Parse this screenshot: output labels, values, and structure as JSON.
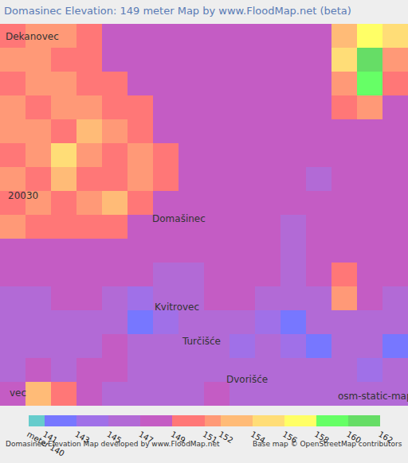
{
  "chart_data": {
    "type": "heatmap",
    "title": "Domasinec Elevation: 149 meter Map by www.FloodMap.net (beta)",
    "xlim": [
      -0.5,
      15.5
    ],
    "ylim": [
      15.5,
      -0.5
    ],
    "tick_labels": false,
    "z": [
      [
        150,
        151.5,
        151.5,
        150,
        148,
        148,
        148,
        148,
        148,
        148,
        148,
        148,
        148,
        153,
        157,
        155
      ],
      [
        151.5,
        151.5,
        150,
        150,
        148,
        148,
        148,
        148,
        148,
        148,
        148,
        148,
        148,
        155,
        161,
        151.5
      ],
      [
        150,
        151.5,
        151.5,
        150,
        150,
        148,
        148,
        148,
        148,
        148,
        148,
        148,
        148,
        151.5,
        159,
        150
      ],
      [
        151.5,
        150,
        151.5,
        151.5,
        150,
        150,
        148,
        148,
        148,
        148,
        148,
        148,
        148,
        150,
        151.5,
        148
      ],
      [
        151.5,
        151.5,
        150,
        153,
        151.5,
        150,
        148,
        148,
        148,
        148,
        148,
        148,
        148,
        148,
        148,
        148
      ],
      [
        150,
        151.5,
        155,
        151.5,
        150,
        151.5,
        150,
        148,
        148,
        148,
        148,
        148,
        148,
        148,
        148,
        148
      ],
      [
        151.5,
        150,
        153,
        150,
        150,
        151.5,
        150,
        148,
        148,
        148,
        148,
        148,
        146,
        148,
        148,
        148
      ],
      [
        150,
        151.5,
        150,
        151.5,
        153,
        150,
        148,
        148,
        148,
        148,
        148,
        148,
        148,
        148,
        148,
        148
      ],
      [
        151.5,
        150,
        150,
        150,
        150,
        148,
        148,
        148,
        148,
        148,
        148,
        146,
        148,
        148,
        148,
        148
      ],
      [
        148,
        148,
        148,
        148,
        148,
        148,
        148,
        148,
        148,
        148,
        148,
        146,
        148,
        148,
        148,
        148
      ],
      [
        148,
        148,
        148,
        148,
        148,
        148,
        146,
        146,
        148,
        148,
        148,
        146,
        148,
        150,
        148,
        148
      ],
      [
        146,
        146,
        148,
        148,
        146,
        144,
        146,
        146,
        148,
        148,
        146,
        146,
        146,
        151.5,
        148,
        146
      ],
      [
        146,
        146,
        146,
        146,
        146,
        142,
        144,
        146,
        146,
        146,
        144,
        142,
        146,
        146,
        146,
        146
      ],
      [
        146,
        146,
        146,
        146,
        148,
        146,
        146,
        146,
        146,
        144,
        146,
        144,
        142,
        146,
        146,
        142
      ],
      [
        146,
        148,
        146,
        148,
        148,
        146,
        146,
        146,
        146,
        146,
        146,
        146,
        146,
        146,
        144,
        146
      ],
      [
        148,
        153,
        150,
        148,
        146,
        146,
        146,
        146,
        148,
        146,
        146,
        146,
        146,
        146,
        146,
        146
      ]
    ],
    "zlim": [
      140,
      162
    ],
    "zticks": [
      {
        "value": 140,
        "label": "meter 140"
      },
      141,
      143,
      145,
      147,
      149,
      151,
      152,
      154,
      156,
      158,
      160,
      162
    ],
    "colors": [
      "#66cccc",
      "#7777ff",
      "#a070e8",
      "#b26ad6",
      "#c45cc4",
      "#ff7777",
      "#ff9977",
      "#ffbb77",
      "#ffdd77",
      "#ffff66",
      "#66ff66",
      "#66dd66"
    ],
    "annotations": [
      {
        "text": "Dekanovec",
        "x": 0.75,
        "y": 0.03
      },
      {
        "text": "20030",
        "x": 0.4,
        "y": 6.7
      },
      {
        "text": "Domašinec",
        "x": 6.53,
        "y": 7.68
      },
      {
        "text": "Kvitrovec",
        "x": 6.44,
        "y": 11.35
      },
      {
        "text": "Turčišće",
        "x": 7.4,
        "y": 12.8
      },
      {
        "text": "Dvorišće",
        "x": 9.19,
        "y": 14.4
      },
      {
        "text": "vec",
        "x": -0.2,
        "y": 14.95
      },
      {
        "text": "osm-static-maps",
        "x": 14.3,
        "y": 15.1
      }
    ],
    "footer": [
      "Domasinec Elevation Map developed by www.FloodMap.net",
      "Base map © OpenStreetMap contributors"
    ]
  }
}
